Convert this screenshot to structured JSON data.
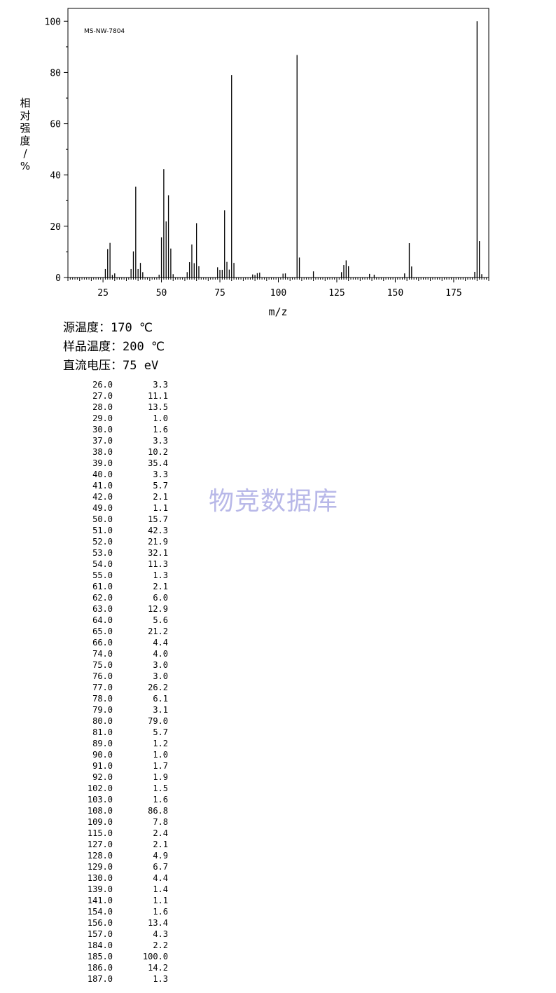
{
  "chart_data": {
    "type": "bar",
    "title": "MS-NW-7804",
    "xlabel": "m/z",
    "ylabel": "相对强度/%",
    "xlim": [
      10,
      190
    ],
    "ylim": [
      0,
      105
    ],
    "x_ticks": [
      25,
      50,
      75,
      100,
      125,
      150,
      175
    ],
    "y_ticks": [
      0,
      20,
      40,
      60,
      80,
      100
    ],
    "grid": false,
    "peaks": [
      {
        "mz": 26.0,
        "intensity": 3.3
      },
      {
        "mz": 27.0,
        "intensity": 11.1
      },
      {
        "mz": 28.0,
        "intensity": 13.5
      },
      {
        "mz": 29.0,
        "intensity": 1.0
      },
      {
        "mz": 30.0,
        "intensity": 1.6
      },
      {
        "mz": 37.0,
        "intensity": 3.3
      },
      {
        "mz": 38.0,
        "intensity": 10.2
      },
      {
        "mz": 39.0,
        "intensity": 35.4
      },
      {
        "mz": 40.0,
        "intensity": 3.3
      },
      {
        "mz": 41.0,
        "intensity": 5.7
      },
      {
        "mz": 42.0,
        "intensity": 2.1
      },
      {
        "mz": 49.0,
        "intensity": 1.1
      },
      {
        "mz": 50.0,
        "intensity": 15.7
      },
      {
        "mz": 51.0,
        "intensity": 42.3
      },
      {
        "mz": 52.0,
        "intensity": 21.9
      },
      {
        "mz": 53.0,
        "intensity": 32.1
      },
      {
        "mz": 54.0,
        "intensity": 11.3
      },
      {
        "mz": 55.0,
        "intensity": 1.3
      },
      {
        "mz": 61.0,
        "intensity": 2.1
      },
      {
        "mz": 62.0,
        "intensity": 6.0
      },
      {
        "mz": 63.0,
        "intensity": 12.9
      },
      {
        "mz": 64.0,
        "intensity": 5.6
      },
      {
        "mz": 65.0,
        "intensity": 21.2
      },
      {
        "mz": 66.0,
        "intensity": 4.4
      },
      {
        "mz": 74.0,
        "intensity": 4.0
      },
      {
        "mz": 75.0,
        "intensity": 3.0
      },
      {
        "mz": 76.0,
        "intensity": 3.0
      },
      {
        "mz": 77.0,
        "intensity": 26.2
      },
      {
        "mz": 78.0,
        "intensity": 6.1
      },
      {
        "mz": 79.0,
        "intensity": 3.1
      },
      {
        "mz": 80.0,
        "intensity": 79.0
      },
      {
        "mz": 81.0,
        "intensity": 5.7
      },
      {
        "mz": 89.0,
        "intensity": 1.2
      },
      {
        "mz": 90.0,
        "intensity": 1.0
      },
      {
        "mz": 91.0,
        "intensity": 1.7
      },
      {
        "mz": 92.0,
        "intensity": 1.9
      },
      {
        "mz": 102.0,
        "intensity": 1.5
      },
      {
        "mz": 103.0,
        "intensity": 1.6
      },
      {
        "mz": 108.0,
        "intensity": 86.8
      },
      {
        "mz": 109.0,
        "intensity": 7.8
      },
      {
        "mz": 115.0,
        "intensity": 2.4
      },
      {
        "mz": 127.0,
        "intensity": 2.1
      },
      {
        "mz": 128.0,
        "intensity": 4.9
      },
      {
        "mz": 129.0,
        "intensity": 6.7
      },
      {
        "mz": 130.0,
        "intensity": 4.4
      },
      {
        "mz": 139.0,
        "intensity": 1.4
      },
      {
        "mz": 141.0,
        "intensity": 1.1
      },
      {
        "mz": 154.0,
        "intensity": 1.6
      },
      {
        "mz": 156.0,
        "intensity": 13.4
      },
      {
        "mz": 157.0,
        "intensity": 4.3
      },
      {
        "mz": 184.0,
        "intensity": 2.2
      },
      {
        "mz": 185.0,
        "intensity": 100.0
      },
      {
        "mz": 186.0,
        "intensity": 14.2
      },
      {
        "mz": 187.0,
        "intensity": 1.3
      }
    ]
  },
  "conditions": {
    "source_temp": "源温度：170 ℃",
    "sample_temp": "样品温度：200 ℃",
    "voltage": "直流电压：75 eV"
  },
  "table_rows": [
    [
      "26.0",
      "3.3"
    ],
    [
      "27.0",
      "11.1"
    ],
    [
      "28.0",
      "13.5"
    ],
    [
      "29.0",
      "1.0"
    ],
    [
      "30.0",
      "1.6"
    ],
    [
      "37.0",
      "3.3"
    ],
    [
      "38.0",
      "10.2"
    ],
    [
      "39.0",
      "35.4"
    ],
    [
      "40.0",
      "3.3"
    ],
    [
      "41.0",
      "5.7"
    ],
    [
      "42.0",
      "2.1"
    ],
    [
      "49.0",
      "1.1"
    ],
    [
      "50.0",
      "15.7"
    ],
    [
      "51.0",
      "42.3"
    ],
    [
      "52.0",
      "21.9"
    ],
    [
      "53.0",
      "32.1"
    ],
    [
      "54.0",
      "11.3"
    ],
    [
      "55.0",
      "1.3"
    ],
    [
      "61.0",
      "2.1"
    ],
    [
      "62.0",
      "6.0"
    ],
    [
      "63.0",
      "12.9"
    ],
    [
      "64.0",
      "5.6"
    ],
    [
      "65.0",
      "21.2"
    ],
    [
      "66.0",
      "4.4"
    ],
    [
      "74.0",
      "4.0"
    ],
    [
      "75.0",
      "3.0"
    ],
    [
      "76.0",
      "3.0"
    ],
    [
      "77.0",
      "26.2"
    ],
    [
      "78.0",
      "6.1"
    ],
    [
      "79.0",
      "3.1"
    ],
    [
      "80.0",
      "79.0"
    ],
    [
      "81.0",
      "5.7"
    ],
    [
      "89.0",
      "1.2"
    ],
    [
      "90.0",
      "1.0"
    ],
    [
      "91.0",
      "1.7"
    ],
    [
      "92.0",
      "1.9"
    ],
    [
      "102.0",
      "1.5"
    ],
    [
      "103.0",
      "1.6"
    ],
    [
      "108.0",
      "86.8"
    ],
    [
      "109.0",
      "7.8"
    ],
    [
      "115.0",
      "2.4"
    ],
    [
      "127.0",
      "2.1"
    ],
    [
      "128.0",
      "4.9"
    ],
    [
      "129.0",
      "6.7"
    ],
    [
      "130.0",
      "4.4"
    ],
    [
      "139.0",
      "1.4"
    ],
    [
      "141.0",
      "1.1"
    ],
    [
      "154.0",
      "1.6"
    ],
    [
      "156.0",
      "13.4"
    ],
    [
      "157.0",
      "4.3"
    ],
    [
      "184.0",
      "2.2"
    ],
    [
      "185.0",
      "100.0"
    ],
    [
      "186.0",
      "14.2"
    ],
    [
      "187.0",
      "1.3"
    ]
  ],
  "watermark": "物竞数据库"
}
